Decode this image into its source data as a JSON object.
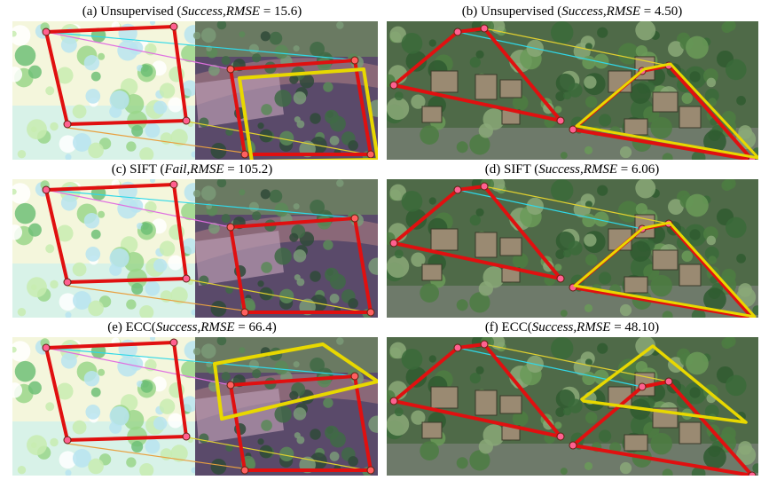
{
  "panels": [
    {
      "id": "a",
      "caption_prefix": "(a) Unsupervised (",
      "status": "Success",
      "metric": ",RMSE",
      "value_text": " = 15.6)",
      "variant": "left",
      "warp": "a"
    },
    {
      "id": "b",
      "caption_prefix": "(b) Unsupervised (",
      "status": "Success",
      "metric": ",RMSE",
      "value_text": " = 4.50)",
      "variant": "right",
      "warp": "b"
    },
    {
      "id": "c",
      "caption_prefix": "(c) SIFT (",
      "status": "Fail",
      "metric": ",RMSE",
      "value_text": " = 105.2)",
      "variant": "left",
      "warp": "c"
    },
    {
      "id": "d",
      "caption_prefix": "(d) SIFT (",
      "status": "Success",
      "metric": ",RMSE",
      "value_text": " = 6.06)",
      "variant": "right",
      "warp": "d"
    },
    {
      "id": "e",
      "caption_prefix": "(e) ECC(",
      "status": "Success",
      "metric": ",RMSE",
      "value_text": " = 66.4)",
      "variant": "left",
      "warp": "e"
    },
    {
      "id": "f",
      "caption_prefix": "(f) ECC(",
      "status": "Success",
      "metric": ",RMSE",
      "value_text": " = 48.10)",
      "variant": "right",
      "warp": "f"
    }
  ],
  "colors": {
    "quad_red": "#e01010",
    "quad_yellow": "#e8d800",
    "line_cyan": "#30d8e8",
    "line_pink": "#e070e0",
    "line_orange": "#e8a040",
    "line_yellow": "#e0d030"
  }
}
